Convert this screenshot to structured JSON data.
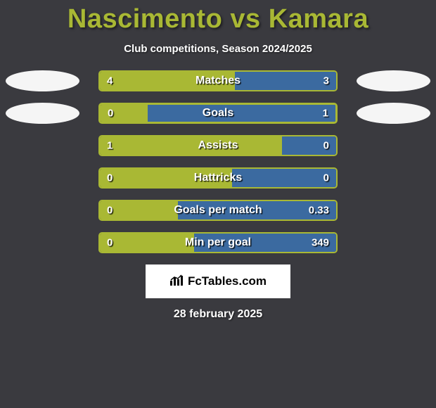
{
  "title_left": "Nascimento",
  "title_vs": "vs",
  "title_right": "Kamara",
  "subtitle": "Club competitions, Season 2024/2025",
  "brand": "FcTables.com",
  "date": "28 february 2025",
  "colors": {
    "left": "#a9b834",
    "right": "#3b6aa0",
    "track_bg": "transparent",
    "avatar": "#f5f5f5"
  },
  "avatar_rows": [
    0,
    1
  ],
  "rows": [
    {
      "label": "Matches",
      "left_val": "4",
      "right_val": "3",
      "left_pct": 57,
      "right_pct": 43,
      "thick": false
    },
    {
      "label": "Goals",
      "left_val": "0",
      "right_val": "1",
      "left_pct": 20,
      "right_pct": 80,
      "thick": true
    },
    {
      "label": "Assists",
      "left_val": "1",
      "right_val": "0",
      "left_pct": 77,
      "right_pct": 23,
      "thick": false
    },
    {
      "label": "Hattricks",
      "left_val": "0",
      "right_val": "0",
      "left_pct": 56,
      "right_pct": 44,
      "thick": false
    },
    {
      "label": "Goals per match",
      "left_val": "0",
      "right_val": "0.33",
      "left_pct": 33,
      "right_pct": 67,
      "thick": false
    },
    {
      "label": "Min per goal",
      "left_val": "0",
      "right_val": "349",
      "left_pct": 40,
      "right_pct": 60,
      "thick": false
    }
  ]
}
